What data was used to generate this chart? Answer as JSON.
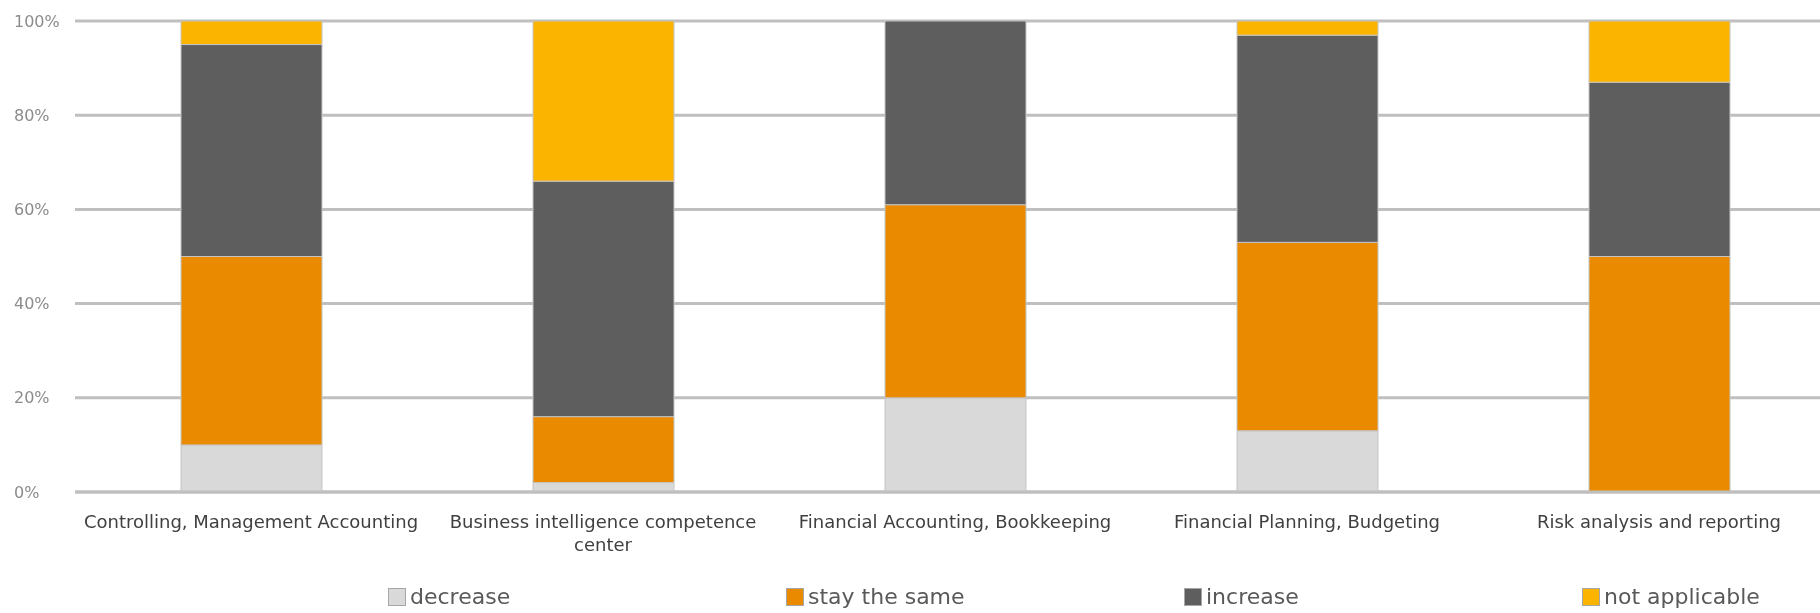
{
  "chart_data": {
    "type": "bar",
    "stacked": true,
    "categories": [
      "Controlling, Management Accounting",
      "Business intelligence competence center",
      "Financial Accounting, Bookkeeping",
      "Financial Planning, Budgeting",
      "Risk analysis and reporting"
    ],
    "series": [
      {
        "name": "decrease",
        "color": "#d9d9d9",
        "values": [
          10,
          2,
          20,
          13,
          0
        ]
      },
      {
        "name": "stay the same",
        "color": "#e98a00",
        "values": [
          40,
          14,
          41,
          40,
          50
        ]
      },
      {
        "name": "increase",
        "color": "#5e5e5e",
        "values": [
          45,
          50,
          39,
          44,
          37
        ]
      },
      {
        "name": "not applicable",
        "color": "#fbb500",
        "values": [
          5,
          34,
          0,
          3,
          13
        ]
      }
    ],
    "ylim": [
      0,
      100
    ],
    "yticks": [
      {
        "value": 0,
        "label": "0%"
      },
      {
        "value": 20,
        "label": "20%"
      },
      {
        "value": 40,
        "label": "40%"
      },
      {
        "value": 60,
        "label": "60%"
      },
      {
        "value": 80,
        "label": "80%"
      },
      {
        "value": 100,
        "label": "100%"
      }
    ],
    "grid": "y",
    "legend": "bottom"
  }
}
